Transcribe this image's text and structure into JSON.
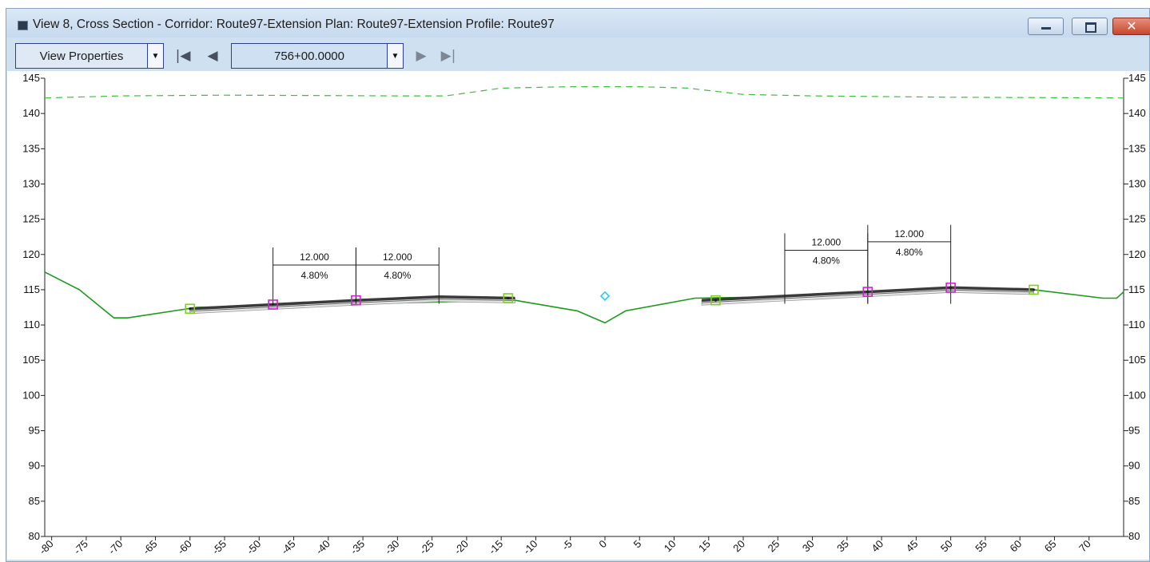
{
  "window": {
    "title": "View 8, Cross Section - Corridor: Route97-Extension Plan: Route97-Extension Profile: Route97",
    "controls": [
      "minimize-icon",
      "maximize-icon",
      "close-icon"
    ],
    "close_glyph": "✕"
  },
  "toolbar": {
    "view_properties_label": "View Properties",
    "station_value": "756+00.0000",
    "nav_first_glyph": "|◀",
    "nav_prev_glyph": "◀",
    "nav_next_glyph": "▶",
    "nav_last_glyph": "▶|",
    "dropdown_arrow_glyph": "▼"
  },
  "colors": {
    "ground_line": "#1a9b1a",
    "existing_dashed": "#3bbf3b",
    "pavement": "#3a3a3a",
    "edge_marker": "#7fd11d",
    "lane_marker": "#d21fd2",
    "centerline_marker": "#25d0e0"
  },
  "chart_data": {
    "type": "line",
    "y_left_ticks": [
      145,
      140,
      135,
      130,
      125,
      120,
      115,
      110,
      105,
      100,
      95,
      90,
      85,
      80
    ],
    "y_right_ticks": [
      145,
      140,
      135,
      130,
      125,
      120,
      115,
      110,
      105,
      100,
      95,
      90,
      85,
      80
    ],
    "x_ticks": [
      -80,
      -75,
      -70,
      -65,
      -60,
      -55,
      -50,
      -45,
      -40,
      -35,
      -30,
      -25,
      -20,
      -15,
      -10,
      -5,
      0,
      5,
      10,
      15,
      20,
      25,
      30,
      35,
      40,
      45,
      50,
      55,
      60,
      65,
      70
    ],
    "xlim": [
      -81,
      75
    ],
    "ylim": [
      80,
      145
    ],
    "series": [
      {
        "role": "existing-ground",
        "x": [
          -81,
          -76,
          -71,
          -69,
          -59,
          -13,
          -4,
          0,
          3,
          13,
          25,
          37,
          50,
          62,
          72,
          74,
          75
        ],
        "y": [
          117.5,
          115.0,
          111.0,
          111.0,
          112.5,
          113.5,
          112.0,
          110.3,
          112.0,
          113.8,
          114.0,
          114.5,
          115.2,
          115.0,
          113.8,
          113.8,
          114.7
        ]
      },
      {
        "role": "existing-ground-dashed",
        "x": [
          -81,
          -70,
          -55,
          -30,
          -23,
          -15,
          -5,
          5,
          12,
          20,
          30,
          50,
          75
        ],
        "y": [
          142.2,
          142.5,
          142.6,
          142.5,
          142.5,
          143.6,
          143.8,
          143.8,
          143.6,
          142.7,
          142.5,
          142.3,
          142.2
        ]
      },
      {
        "role": "left-roadway-top",
        "x": [
          -60,
          -48,
          -36,
          -24,
          -13
        ],
        "y": [
          112.3,
          112.9,
          113.5,
          114.0,
          113.8
        ]
      },
      {
        "role": "right-roadway-top",
        "x": [
          14,
          26,
          38,
          50,
          62
        ],
        "y": [
          113.5,
          114.1,
          114.7,
          115.3,
          115.0
        ]
      }
    ],
    "dimensions": [
      {
        "label_top": "12.000",
        "label_bottom": "4.80%"
      },
      {
        "label_top": "12.000",
        "label_bottom": "4.80%"
      },
      {
        "label_top": "12.000",
        "label_bottom": "4.80%"
      },
      {
        "label_top": "12.000",
        "label_bottom": "4.80%"
      }
    ],
    "markers": [
      {
        "kind": "edge",
        "x": -60,
        "y": 112.3
      },
      {
        "kind": "lane",
        "x": -48,
        "y": 112.9
      },
      {
        "kind": "lane",
        "x": -36,
        "y": 113.5
      },
      {
        "kind": "edge",
        "x": -14,
        "y": 113.8
      },
      {
        "kind": "centerline",
        "x": 0,
        "y": 114.1
      },
      {
        "kind": "edge",
        "x": 16,
        "y": 113.5
      },
      {
        "kind": "lane",
        "x": 38,
        "y": 114.7
      },
      {
        "kind": "lane",
        "x": 50,
        "y": 115.3
      },
      {
        "kind": "edge",
        "x": 62,
        "y": 115.0
      }
    ]
  }
}
